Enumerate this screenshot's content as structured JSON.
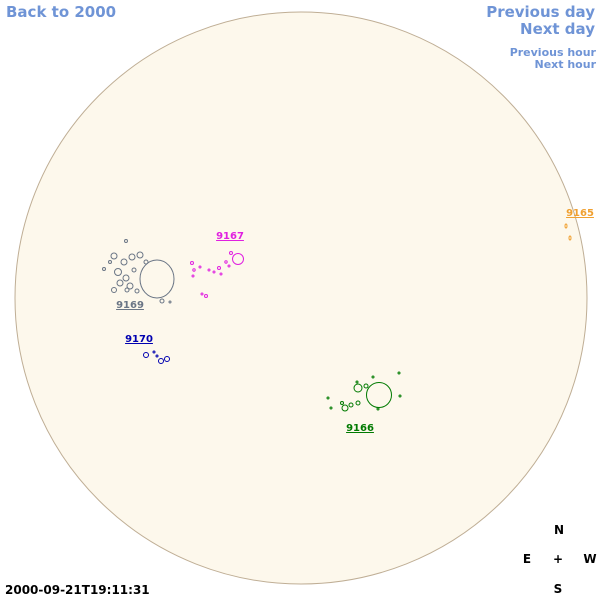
{
  "nav": {
    "back": "Back to 2000",
    "previous_day": "Previous day",
    "next_day": "Next day",
    "previous_hour": "Previous hour",
    "next_hour": "Next hour"
  },
  "regions": [
    {
      "label": "9165",
      "color": "#f0a030"
    },
    {
      "label": "9167",
      "color": "#e020e0"
    },
    {
      "label": "9169",
      "color": "#6a7585"
    },
    {
      "label": "9170",
      "color": "#0000b0"
    },
    {
      "label": "9166",
      "color": "#007a00"
    }
  ],
  "compass": {
    "north": "N",
    "east": "E",
    "center": "+",
    "west": "W",
    "south": "S"
  },
  "timestamp": "2000-09-21T19:11:31"
}
